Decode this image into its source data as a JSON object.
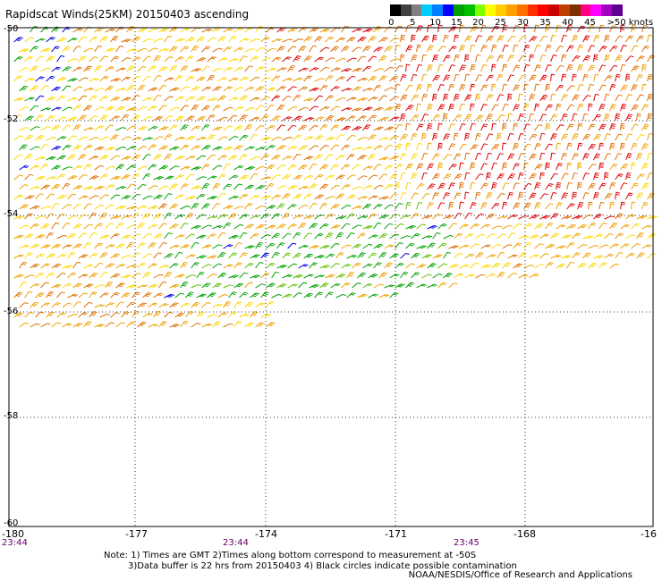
{
  "title": "Rapidscat Winds(25KM) 20150403 ascending",
  "legend": {
    "labels": [
      "0",
      "5",
      "10",
      "15",
      "20",
      "25",
      "30",
      "35",
      "40",
      "45",
      ">50 knots"
    ],
    "colors": [
      "#000000",
      "#404040",
      "#808080",
      "#00ccff",
      "#0080ff",
      "#0000ff",
      "#00a000",
      "#00c000",
      "#80ff00",
      "#ffff00",
      "#ffcc00",
      "#ffa000",
      "#ff7000",
      "#ff3000",
      "#ff0000",
      "#cc0000",
      "#c04000",
      "#803000",
      "#ff0080",
      "#ff00ff",
      "#a000c0",
      "#600090"
    ]
  },
  "axes": {
    "y_labels": [
      "-50",
      "-52",
      "-54",
      "-56",
      "-58",
      "-60"
    ],
    "x_labels": [
      "-180",
      "-177",
      "-174",
      "-171",
      "-168",
      "-16"
    ]
  },
  "times": [
    "23:44",
    "23:44",
    "23:45"
  ],
  "notes": {
    "line1": "Note: 1) Times are GMT 2)Times along bottom correspond to measurement at -50S",
    "line2": "3)Data buffer is 22 hrs from 20150403 4) Black circles indicate possible contamination"
  },
  "credit": "NOAA/NESDIS/Office of Research and Applications",
  "wind_colors": {
    "yellow": "#ffd700",
    "gold": "#f0a000",
    "orange": "#e07000",
    "red": "#e00000",
    "green": "#00a000",
    "lightgreen": "#60c000",
    "blue": "#0000e0"
  }
}
